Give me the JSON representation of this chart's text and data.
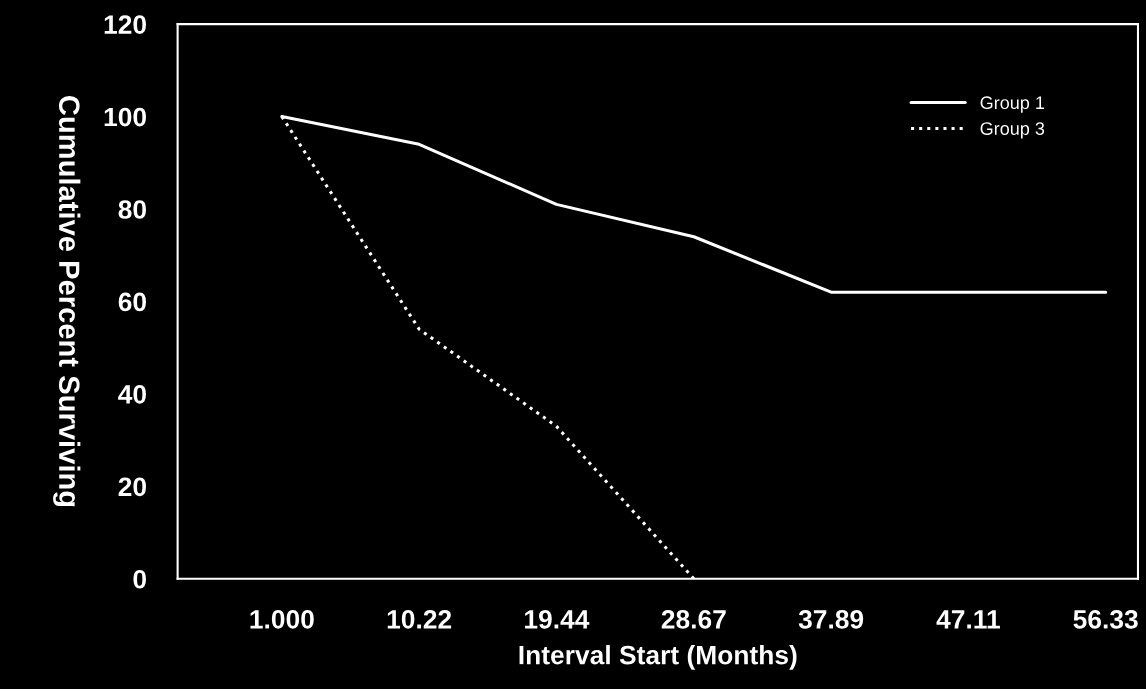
{
  "chart_data": {
    "type": "line",
    "xlabel": "Interval Start (Months)",
    "ylabel": "Cumulative Percent Surviving",
    "xlim": [
      -6,
      58.5
    ],
    "xticks": [
      {
        "value": 1,
        "label": "1.000"
      },
      10.22,
      19.44,
      28.67,
      37.89,
      47.11,
      56.33
    ],
    "ylim": [
      0,
      120
    ],
    "yticks": [
      0,
      20,
      40,
      60,
      80,
      100,
      120
    ],
    "grid": false,
    "legend": "top right",
    "marker": "none",
    "series": [
      {
        "name": "Group 1",
        "color": "#ffffff",
        "line_style": "solid",
        "x": [
          1,
          10.22,
          19.44,
          28.67,
          37.89,
          47.11,
          56.33
        ],
        "values": [
          100,
          94,
          81,
          74,
          62,
          62,
          62
        ]
      },
      {
        "name": "Group 3",
        "color": "#ffffff",
        "line_style": "dotted",
        "x": [
          1,
          10.22,
          19.44,
          28.67
        ],
        "values": [
          100,
          54,
          33,
          0
        ]
      }
    ]
  }
}
